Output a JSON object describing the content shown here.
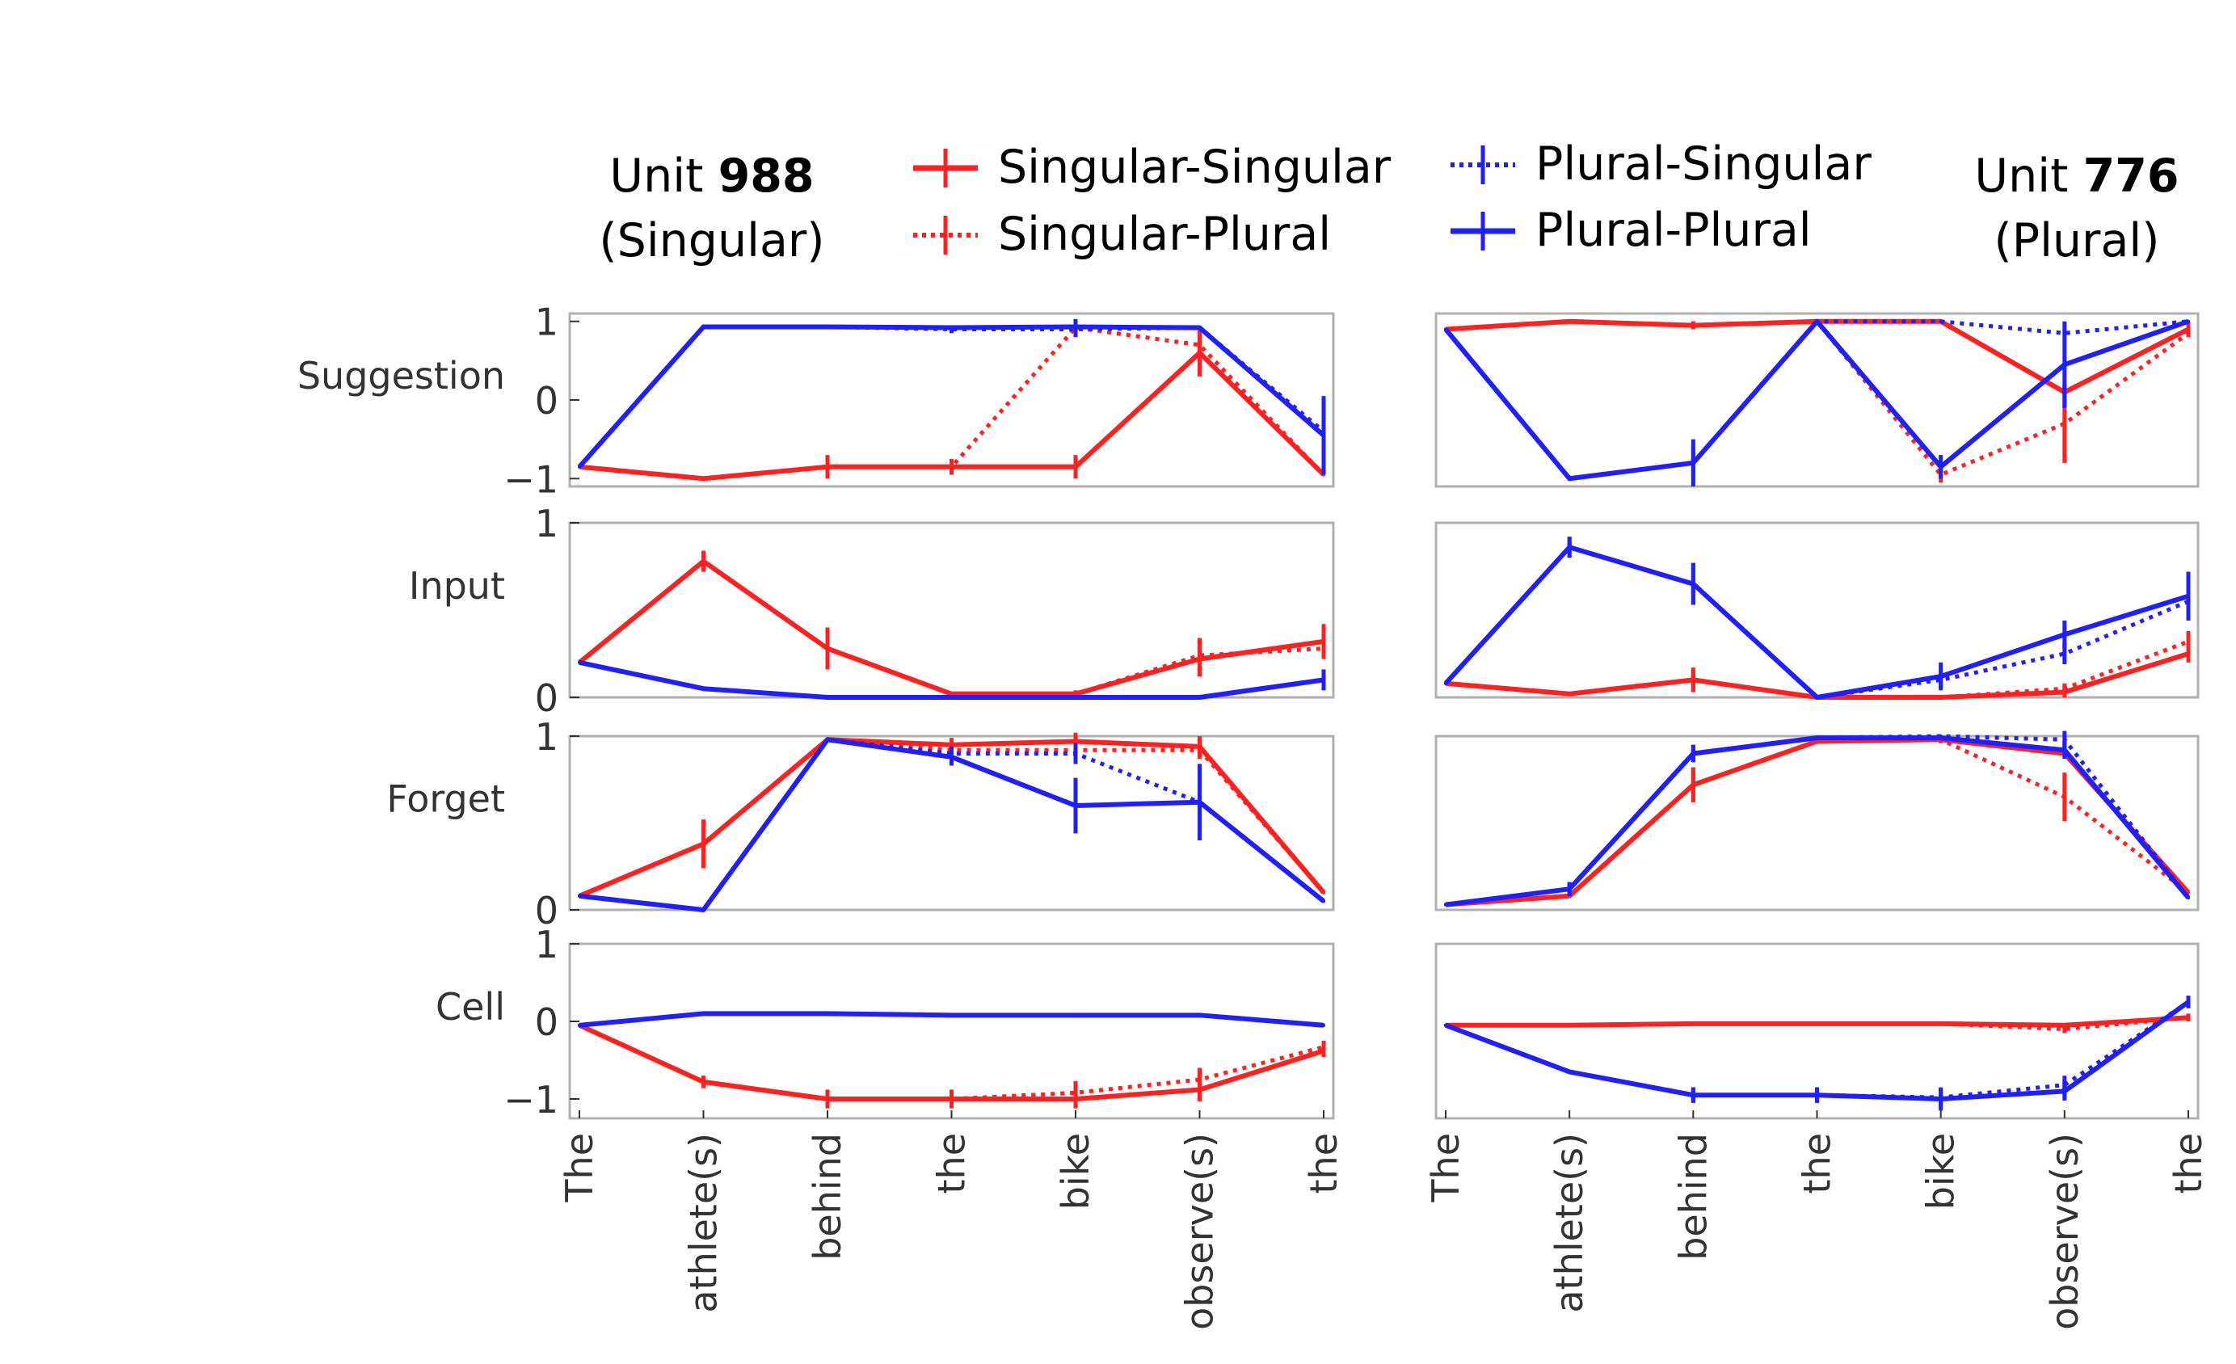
{
  "panel_titles": {
    "left": {
      "prefix": "Unit ",
      "unit": "988",
      "subtitle": "(Singular)"
    },
    "right": {
      "prefix": "Unit ",
      "unit": "776",
      "subtitle": "(Plural)"
    }
  },
  "legend": [
    {
      "label": "Singular-Singular",
      "color": "#ff2020",
      "dash": "solid"
    },
    {
      "label": "Singular-Plural",
      "color": "#ff2020",
      "dash": "dotted"
    },
    {
      "label": "Plural-Singular",
      "color": "#1f1fff",
      "dash": "dotted"
    },
    {
      "label": "Plural-Plural",
      "color": "#1f1fff",
      "dash": "solid"
    }
  ],
  "colors": {
    "red": "#ff2020",
    "blue": "#1f1fff",
    "frame": "#b0b0b0"
  },
  "chart_data": [
    {
      "type": "line",
      "unit": "988",
      "x": [
        "The",
        "athlete(s)",
        "behind",
        "the",
        "bike",
        "observe(s)",
        "the"
      ],
      "subplots": [
        {
          "ylabel": "Suggestion",
          "ylim": [
            -1.1,
            1.1
          ],
          "yticks": [
            1,
            0,
            -1
          ],
          "yticklabels": [
            "1",
            "0",
            "−1"
          ],
          "series": [
            {
              "name": "Singular-Singular",
              "values": [
                -0.85,
                -1.0,
                -0.85,
                -0.85,
                -0.85,
                0.6,
                -0.95
              ],
              "err": [
                0,
                0,
                0.15,
                0.1,
                0.15,
                0.3,
                0
              ]
            },
            {
              "name": "Singular-Plural",
              "values": [
                -0.85,
                -1.0,
                -0.85,
                -0.85,
                0.92,
                0.7,
                -0.95
              ],
              "err": [
                0,
                0,
                0.15,
                0.1,
                0.1,
                0.2,
                0
              ]
            },
            {
              "name": "Plural-Singular",
              "values": [
                -0.85,
                0.93,
                0.93,
                0.9,
                0.9,
                0.92,
                -0.4
              ],
              "err": [
                0,
                0,
                0,
                0.05,
                0.1,
                0,
                0
              ]
            },
            {
              "name": "Plural-Plural",
              "values": [
                -0.85,
                0.93,
                0.93,
                0.92,
                0.93,
                0.92,
                -0.45
              ],
              "err": [
                0,
                0,
                0,
                0,
                0.1,
                0,
                0.5
              ]
            }
          ]
        },
        {
          "ylabel": "Input",
          "ylim": [
            0,
            1
          ],
          "yticks": [
            1,
            0
          ],
          "yticklabels": [
            "1",
            "0"
          ],
          "series": [
            {
              "name": "Singular-Singular",
              "values": [
                0.2,
                0.78,
                0.28,
                0.02,
                0.02,
                0.22,
                0.32
              ],
              "err": [
                0,
                0.06,
                0.12,
                0,
                0.02,
                0.1,
                0.1
              ]
            },
            {
              "name": "Singular-Plural",
              "values": [
                0.2,
                0.78,
                0.28,
                0.02,
                0.02,
                0.24,
                0.28
              ],
              "err": [
                0,
                0.06,
                0.12,
                0,
                0.02,
                0.1,
                0.06
              ]
            },
            {
              "name": "Plural-Singular",
              "values": [
                0.2,
                0.05,
                0.0,
                0.0,
                0.0,
                0.0,
                0.1
              ],
              "err": [
                0,
                0,
                0,
                0,
                0,
                0,
                0
              ]
            },
            {
              "name": "Plural-Plural",
              "values": [
                0.2,
                0.05,
                0.0,
                0.0,
                0.0,
                0.0,
                0.1
              ],
              "err": [
                0,
                0,
                0,
                0,
                0,
                0,
                0.06
              ]
            }
          ]
        },
        {
          "ylabel": "Forget",
          "ylim": [
            0,
            1
          ],
          "yticks": [
            1,
            0
          ],
          "yticklabels": [
            "1",
            "0"
          ],
          "series": [
            {
              "name": "Singular-Singular",
              "values": [
                0.08,
                0.38,
                0.98,
                0.95,
                0.97,
                0.94,
                0.1
              ],
              "err": [
                0,
                0.14,
                0,
                0.04,
                0.05,
                0.06,
                0
              ]
            },
            {
              "name": "Singular-Plural",
              "values": [
                0.08,
                0.38,
                0.98,
                0.92,
                0.92,
                0.92,
                0.1
              ],
              "err": [
                0,
                0.14,
                0,
                0.04,
                0.08,
                0.05,
                0
              ]
            },
            {
              "name": "Plural-Singular",
              "values": [
                0.08,
                0.0,
                0.98,
                0.9,
                0.9,
                0.62,
                0.05
              ],
              "err": [
                0,
                0,
                0,
                0.04,
                0.06,
                0,
                0
              ]
            },
            {
              "name": "Plural-Plural",
              "values": [
                0.08,
                0.0,
                0.98,
                0.88,
                0.6,
                0.62,
                0.05
              ],
              "err": [
                0,
                0,
                0,
                0.05,
                0.16,
                0.22,
                0
              ]
            }
          ]
        },
        {
          "ylabel": "Cell",
          "ylim": [
            -1.25,
            1.0
          ],
          "yticks": [
            1,
            0,
            -1
          ],
          "yticklabels": [
            "1",
            "0",
            "−1"
          ],
          "series": [
            {
              "name": "Singular-Singular",
              "values": [
                -0.05,
                -0.78,
                -1.0,
                -1.0,
                -1.0,
                -0.88,
                -0.38
              ],
              "err": [
                0,
                0.08,
                0.12,
                0.12,
                0.12,
                0.15,
                0.08
              ]
            },
            {
              "name": "Singular-Plural",
              "values": [
                -0.05,
                -0.78,
                -1.0,
                -1.0,
                -0.92,
                -0.75,
                -0.33
              ],
              "err": [
                0,
                0.08,
                0.12,
                0.12,
                0.15,
                0.15,
                0.08
              ]
            },
            {
              "name": "Plural-Singular",
              "values": [
                -0.05,
                0.1,
                0.1,
                0.08,
                0.08,
                0.08,
                -0.05
              ],
              "err": [
                0,
                0,
                0,
                0,
                0,
                0,
                0
              ]
            },
            {
              "name": "Plural-Plural",
              "values": [
                -0.05,
                0.1,
                0.1,
                0.08,
                0.08,
                0.08,
                -0.05
              ],
              "err": [
                0,
                0,
                0,
                0,
                0,
                0,
                0
              ]
            }
          ]
        }
      ]
    },
    {
      "type": "line",
      "unit": "776",
      "x": [
        "The",
        "athlete(s)",
        "behind",
        "the",
        "bike",
        "observe(s)",
        "the"
      ],
      "subplots": [
        {
          "ylabel": "",
          "ylim": [
            -1.1,
            1.1
          ],
          "yticks": [],
          "yticklabels": [],
          "series": [
            {
              "name": "Singular-Singular",
              "values": [
                0.9,
                1.0,
                0.95,
                1.0,
                1.0,
                0.1,
                0.9
              ],
              "err": [
                0,
                0,
                0.05,
                0,
                0,
                0,
                0.1
              ]
            },
            {
              "name": "Singular-Plural",
              "values": [
                0.9,
                1.0,
                0.95,
                1.0,
                -0.95,
                -0.3,
                0.85
              ],
              "err": [
                0,
                0,
                0.05,
                0,
                0.1,
                0.5,
                0
              ]
            },
            {
              "name": "Plural-Singular",
              "values": [
                0.9,
                -1.0,
                -0.8,
                1.0,
                1.0,
                0.85,
                1.0
              ],
              "err": [
                0,
                0,
                0.2,
                0,
                0,
                0,
                0
              ]
            },
            {
              "name": "Plural-Plural",
              "values": [
                0.9,
                -1.0,
                -0.8,
                1.0,
                -0.85,
                0.45,
                1.0
              ],
              "err": [
                0,
                0,
                0.3,
                0,
                0.15,
                0.55,
                0
              ]
            }
          ]
        },
        {
          "ylabel": "",
          "ylim": [
            0,
            1
          ],
          "yticks": [],
          "yticklabels": [],
          "series": [
            {
              "name": "Singular-Singular",
              "values": [
                0.08,
                0.02,
                0.1,
                0.0,
                0.0,
                0.03,
                0.25
              ],
              "err": [
                0,
                0,
                0.07,
                0,
                0,
                0.03,
                0.05
              ]
            },
            {
              "name": "Singular-Plural",
              "values": [
                0.08,
                0.02,
                0.1,
                0.0,
                0.0,
                0.05,
                0.32
              ],
              "err": [
                0,
                0,
                0.07,
                0,
                0,
                0.03,
                0.06
              ]
            },
            {
              "name": "Plural-Singular",
              "values": [
                0.08,
                0.86,
                0.65,
                0.0,
                0.1,
                0.25,
                0.55
              ],
              "err": [
                0,
                0.06,
                0.12,
                0,
                0.05,
                0.06,
                0.1
              ]
            },
            {
              "name": "Plural-Plural",
              "values": [
                0.08,
                0.86,
                0.65,
                0.0,
                0.12,
                0.36,
                0.58
              ],
              "err": [
                0,
                0.06,
                0.12,
                0,
                0.08,
                0.08,
                0.14
              ]
            }
          ]
        },
        {
          "ylabel": "",
          "ylim": [
            0,
            1
          ],
          "yticks": [],
          "yticklabels": [],
          "series": [
            {
              "name": "Singular-Singular",
              "values": [
                0.03,
                0.08,
                0.72,
                0.97,
                0.98,
                0.9,
                0.1
              ],
              "err": [
                0,
                0,
                0.1,
                0,
                0.02,
                0,
                0
              ]
            },
            {
              "name": "Singular-Plural",
              "values": [
                0.03,
                0.08,
                0.72,
                0.97,
                0.98,
                0.65,
                0.1
              ],
              "err": [
                0,
                0,
                0.1,
                0,
                0.02,
                0.14,
                0
              ]
            },
            {
              "name": "Plural-Singular",
              "values": [
                0.03,
                0.12,
                0.9,
                0.99,
                1.0,
                0.98,
                0.07
              ],
              "err": [
                0,
                0.04,
                0.05,
                0,
                0,
                0.05,
                0
              ]
            },
            {
              "name": "Plural-Plural",
              "values": [
                0.03,
                0.12,
                0.9,
                0.99,
                0.99,
                0.92,
                0.07
              ],
              "err": [
                0,
                0.04,
                0.05,
                0,
                0,
                0.05,
                0
              ]
            }
          ]
        },
        {
          "ylabel": "",
          "ylim": [
            -1.25,
            1.0
          ],
          "yticks": [],
          "yticklabels": [],
          "series": [
            {
              "name": "Singular-Singular",
              "values": [
                -0.05,
                -0.05,
                -0.03,
                -0.03,
                -0.03,
                -0.05,
                0.05
              ],
              "err": [
                0,
                0,
                0,
                0,
                0,
                0,
                0.05
              ]
            },
            {
              "name": "Singular-Plural",
              "values": [
                -0.05,
                -0.05,
                -0.03,
                -0.03,
                -0.03,
                -0.1,
                0.05
              ],
              "err": [
                0,
                0,
                0,
                0,
                0,
                0.05,
                0.05
              ]
            },
            {
              "name": "Plural-Singular",
              "values": [
                -0.05,
                -0.65,
                -0.95,
                -0.95,
                -0.98,
                -0.82,
                0.25
              ],
              "err": [
                0,
                0,
                0.1,
                0.1,
                0.12,
                0.12,
                0.08
              ]
            },
            {
              "name": "Plural-Plural",
              "values": [
                -0.05,
                -0.65,
                -0.95,
                -0.95,
                -1.0,
                -0.9,
                0.25
              ],
              "err": [
                0,
                0,
                0.1,
                0.1,
                0.15,
                0.12,
                0.08
              ]
            }
          ]
        }
      ]
    }
  ]
}
